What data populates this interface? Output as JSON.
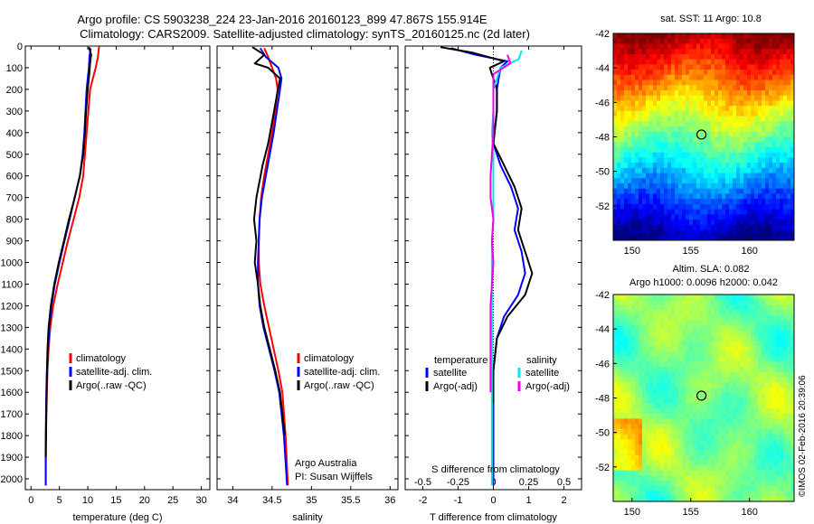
{
  "header": {
    "line1": "Argo profile: CS 5903238_224 23-Jan-2016 20160123_899 47.867S 155.914E",
    "line2": "Climatology: CARS2009. Satellite-adjusted climatology: synTS_20160125.nc (2d later)"
  },
  "credits": {
    "line1": "Argo Australia",
    "line2": "PI: Susan Wijffels"
  },
  "stamp": "©IMOS 02-Feb-2016 20:39:06",
  "colors": {
    "climatology": "#ff0000",
    "satellite": "#0000ff",
    "argo": "#000000",
    "satellite_s": "#00e5ee",
    "argo_s": "#ee00ee"
  },
  "chart_data": [
    {
      "type": "line",
      "panel": "temperature",
      "xlabel": "temperature (deg C)",
      "ylabel": "",
      "xlim": [
        -1,
        31.5
      ],
      "ylim": [
        2050,
        0
      ],
      "xticks": [
        0,
        5,
        10,
        15,
        20,
        25,
        30
      ],
      "yticks": [
        0,
        100,
        200,
        300,
        400,
        500,
        600,
        700,
        800,
        900,
        1000,
        1100,
        1200,
        1300,
        1400,
        1500,
        1600,
        1700,
        1800,
        1900,
        2000
      ],
      "legend": [
        "climatology",
        "satellite-adj. clim.",
        "Argo(..raw -QC)"
      ],
      "series": [
        {
          "name": "climatology",
          "color": "#ff0000",
          "x": [
            12.0,
            11.8,
            11.4,
            10.9,
            10.4,
            10.1,
            9.8,
            9.5,
            9.2,
            8.5,
            7.5,
            6.5,
            5.6,
            4.7,
            3.9,
            3.4,
            3.1,
            2.9,
            2.8,
            2.7,
            2.6,
            2.6
          ],
          "y": [
            0,
            50,
            100,
            150,
            200,
            300,
            400,
            500,
            600,
            700,
            800,
            900,
            1000,
            1100,
            1200,
            1300,
            1400,
            1500,
            1600,
            1700,
            1850,
            2030
          ]
        },
        {
          "name": "satellite-adj. clim.",
          "color": "#0000ff",
          "x": [
            10.5,
            10.3,
            10.2,
            10.0,
            9.8,
            9.6,
            9.4,
            9.1,
            8.6,
            7.7,
            6.8,
            5.9,
            5.0,
            4.2,
            3.6,
            3.2,
            3.0,
            2.8,
            2.7,
            2.6,
            2.6
          ],
          "y": [
            10,
            50,
            100,
            150,
            200,
            300,
            400,
            500,
            600,
            700,
            800,
            900,
            1000,
            1100,
            1200,
            1300,
            1400,
            1500,
            1600,
            1800,
            2030
          ]
        },
        {
          "name": "Argo(..raw -QC)",
          "color": "#000000",
          "x": [
            10.2,
            10.6,
            10.4,
            10.3,
            10.0,
            9.7,
            9.5,
            9.2,
            8.6,
            7.7,
            6.7,
            5.8,
            4.9,
            4.1,
            3.5,
            3.1,
            2.9,
            2.8,
            2.7,
            2.6
          ],
          "y": [
            5,
            40,
            80,
            120,
            200,
            300,
            400,
            500,
            600,
            700,
            800,
            900,
            1000,
            1100,
            1200,
            1300,
            1400,
            1500,
            1700,
            1900
          ]
        }
      ]
    },
    {
      "type": "line",
      "panel": "salinity",
      "xlabel": "salinity",
      "ylabel": "",
      "xlim": [
        33.8,
        36.1
      ],
      "ylim": [
        2050,
        0
      ],
      "xticks": [
        34,
        34.5,
        35,
        35.5,
        36
      ],
      "xtick_labels": [
        "34",
        "34.5",
        "35",
        "35.5",
        "36"
      ],
      "legend": [
        "climatology",
        "satellite-adj. clim.",
        "Argo(..raw -QC)"
      ],
      "series": [
        {
          "name": "climatology",
          "color": "#ff0000",
          "x": [
            34.4,
            34.45,
            34.5,
            34.55,
            34.57,
            34.54,
            34.5,
            34.45,
            34.4,
            34.36,
            34.34,
            34.33,
            34.33,
            34.35,
            34.4,
            34.46,
            34.52,
            34.58,
            34.63,
            34.67,
            34.7
          ],
          "y": [
            10,
            50,
            100,
            150,
            200,
            300,
            400,
            500,
            600,
            700,
            800,
            900,
            1000,
            1100,
            1200,
            1300,
            1400,
            1500,
            1600,
            1800,
            2030
          ]
        },
        {
          "name": "satellite-adj. clim.",
          "color": "#0000ff",
          "x": [
            34.35,
            34.42,
            34.58,
            34.62,
            34.6,
            34.56,
            34.52,
            34.47,
            34.42,
            34.37,
            34.34,
            34.33,
            34.32,
            34.32,
            34.34,
            34.39,
            34.46,
            34.53,
            34.59,
            34.65,
            34.69
          ],
          "y": [
            10,
            50,
            100,
            150,
            200,
            300,
            400,
            500,
            600,
            700,
            800,
            900,
            1000,
            1100,
            1200,
            1300,
            1400,
            1500,
            1600,
            1800,
            2030
          ]
        },
        {
          "name": "Argo(..raw -QC)",
          "color": "#000000",
          "x": [
            34.25,
            34.4,
            34.28,
            34.45,
            34.6,
            34.55,
            34.5,
            34.45,
            34.38,
            34.3,
            34.27,
            34.3,
            34.28,
            34.32,
            34.35,
            34.4,
            34.47,
            34.54,
            34.6,
            34.66
          ],
          "y": [
            5,
            40,
            80,
            100,
            150,
            250,
            350,
            450,
            550,
            700,
            800,
            900,
            1000,
            1100,
            1200,
            1300,
            1400,
            1500,
            1600,
            1800
          ]
        }
      ]
    },
    {
      "type": "line",
      "panel": "difference",
      "xlabel": "T difference from climatology",
      "xlabel2": "S difference from climatology",
      "xlim": [
        -2.5,
        2.5
      ],
      "ylim": [
        2050,
        0
      ],
      "xticks": [
        -2,
        -1,
        0,
        1,
        2
      ],
      "s_xticks": [
        -0.5,
        -0.25,
        0,
        0.25,
        0.5
      ],
      "s_xtick_labels": [
        "-0.5",
        "-0.25",
        "0",
        "0.25",
        "0.5"
      ],
      "s_scale": 4,
      "legend_left_title": "temperature",
      "legend_right_title": "salinity",
      "legend": [
        "satellite",
        "Argo(-adj)",
        "satellite",
        "Argo(-adj)"
      ],
      "series": [
        {
          "name": "satellite",
          "quantity": "temperature",
          "color": "#0000ff",
          "x": [
            -1.2,
            -0.5,
            0.4,
            0.2,
            0.1,
            0.1,
            0.0,
            0.2,
            0.5,
            0.7,
            0.6,
            0.8,
            0.9,
            0.7,
            0.3,
            0.1,
            0.0,
            0.0,
            0.0,
            0.0
          ],
          "y": [
            10,
            40,
            70,
            100,
            200,
            300,
            450,
            550,
            650,
            750,
            850,
            950,
            1050,
            1150,
            1250,
            1350,
            1500,
            1650,
            1850,
            2030
          ]
        },
        {
          "name": "Argo(-adj)",
          "quantity": "temperature",
          "color": "#000000",
          "x": [
            -1.5,
            -0.6,
            0.3,
            -0.1,
            0.1,
            0.1,
            0.0,
            0.3,
            0.6,
            0.8,
            0.7,
            0.9,
            1.1,
            0.9,
            0.4,
            0.1,
            0.0,
            0.0
          ],
          "y": [
            5,
            30,
            70,
            100,
            200,
            300,
            450,
            550,
            650,
            750,
            850,
            950,
            1050,
            1150,
            1250,
            1350,
            1500,
            1650
          ]
        },
        {
          "name": "satellite",
          "quantity": "salinity",
          "color": "#00e5ee",
          "x": [
            0.2,
            0.18,
            0.05,
            0.0,
            0.0,
            -0.01,
            0.0,
            0.0,
            0.0,
            0.0,
            -0.01,
            -0.01,
            -0.01,
            -0.01,
            -0.01,
            -0.01,
            -0.01,
            -0.01
          ],
          "y": [
            20,
            60,
            100,
            200,
            300,
            400,
            500,
            600,
            700,
            800,
            900,
            1000,
            1100,
            1200,
            1400,
            1600,
            1800,
            2030
          ]
        },
        {
          "name": "Argo(-adj)",
          "quantity": "salinity",
          "color": "#ee00ee",
          "x": [
            0.1,
            0.12,
            0.0,
            0.0,
            0.0,
            0.0,
            -0.01,
            -0.02,
            -0.02,
            0.0,
            -0.01,
            0.0,
            -0.01,
            -0.02,
            -0.02,
            -0.02
          ],
          "y": [
            40,
            80,
            130,
            200,
            300,
            400,
            500,
            600,
            700,
            800,
            900,
            1000,
            1100,
            1200,
            1400,
            1600
          ]
        }
      ]
    },
    {
      "type": "heatmap",
      "panel": "sst-map",
      "title": "sat. SST: 11 Argo: 10.8",
      "xlim": [
        148.4,
        163.8
      ],
      "ylim": [
        -54,
        -42
      ],
      "xticks": [
        150,
        155,
        160
      ],
      "yticks": [
        -42,
        -44,
        -46,
        -48,
        -50,
        -52
      ],
      "marker": {
        "lon": 155.914,
        "lat": -47.867
      }
    },
    {
      "type": "heatmap",
      "panel": "sla-map",
      "title": "Altim. SLA: 0.082",
      "subtitle": "Argo h1000: 0.0096 h2000: 0.042",
      "xlim": [
        148.4,
        163.8
      ],
      "ylim": [
        -54,
        -42
      ],
      "xticks": [
        150,
        155,
        160
      ],
      "yticks": [
        -42,
        -44,
        -46,
        -48,
        -50,
        -52
      ],
      "marker": {
        "lon": 155.914,
        "lat": -47.867
      }
    }
  ]
}
